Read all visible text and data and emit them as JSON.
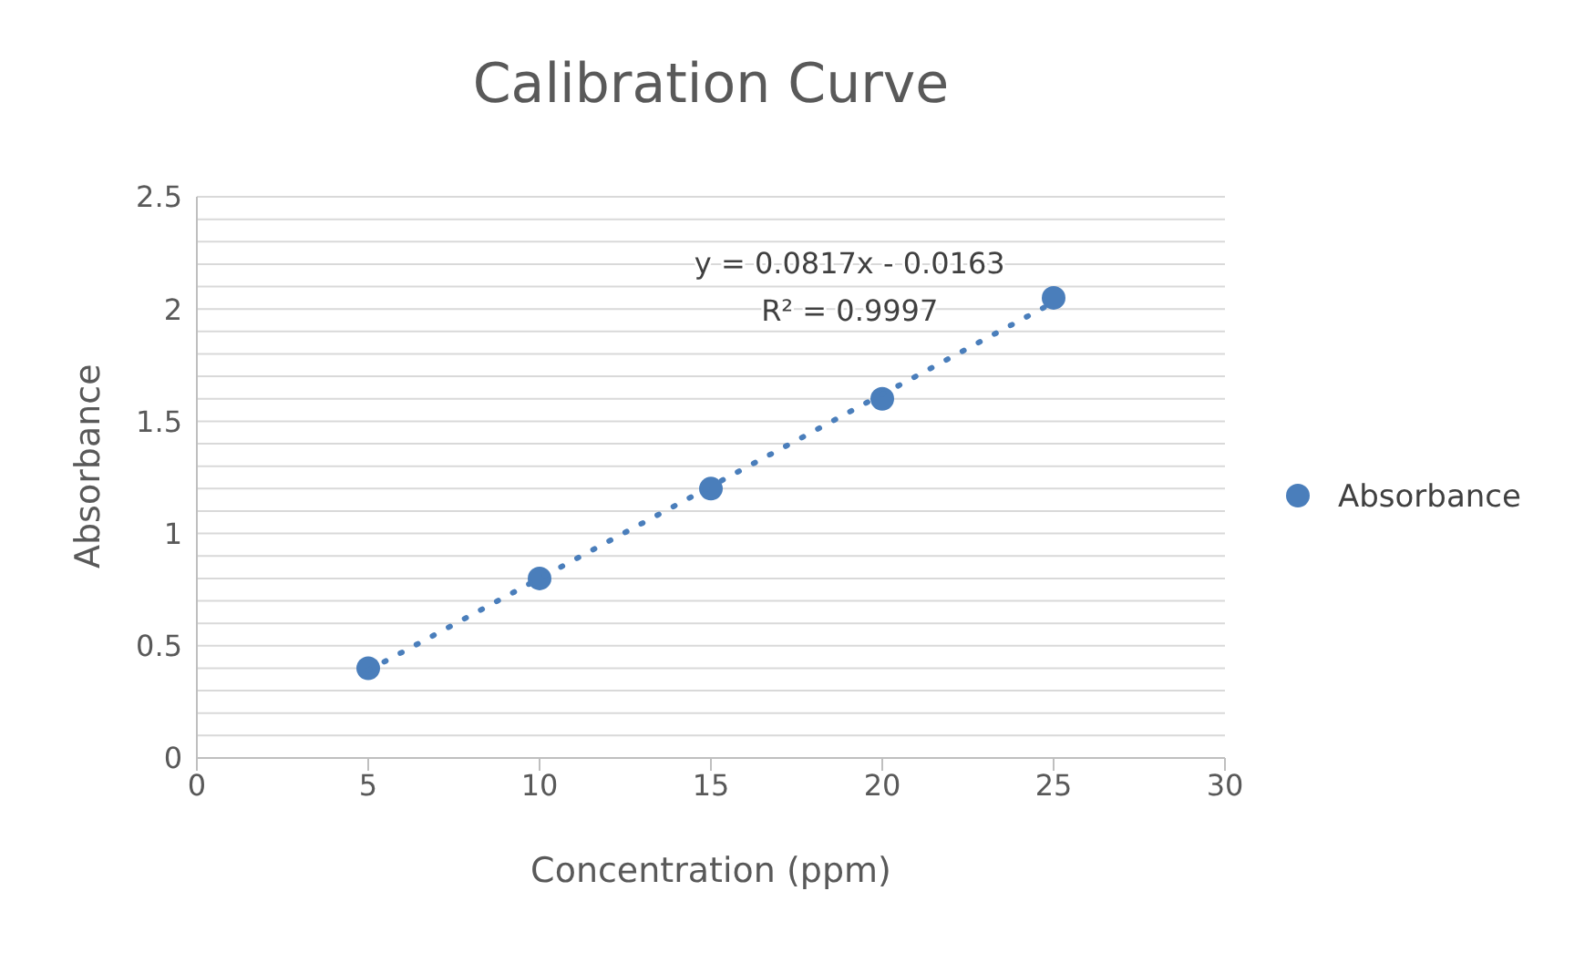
{
  "chart_data": {
    "type": "scatter",
    "title": "Calibration Curve",
    "xlabel": "Concentration (ppm)",
    "ylabel": "Absorbance",
    "annotations": [
      "y = 0.0817x - 0.0163",
      "R² = 0.9997"
    ],
    "x": [
      5,
      10,
      15,
      20,
      25
    ],
    "series": [
      {
        "name": "Absorbance",
        "color": "#4a7ebb",
        "values": [
          0.4,
          0.8,
          1.2,
          1.6,
          2.05
        ],
        "marker": "circle"
      },
      {
        "type": "line",
        "color": "#4a7ebb",
        "x": [
          5,
          25
        ],
        "values": [
          0.39,
          2.03
        ],
        "line_style": "dotted",
        "marker": "none"
      }
    ],
    "xlim": [
      0,
      30
    ],
    "xticks": [
      0,
      5,
      10,
      15,
      20,
      25,
      30
    ],
    "ylim": [
      0,
      2.5
    ],
    "yticks": [
      0,
      {
        "value": 0.1,
        "label": null
      },
      {
        "value": 0.2,
        "label": null
      },
      {
        "value": 0.3,
        "label": null
      },
      {
        "value": 0.4,
        "label": null
      },
      0.5,
      {
        "value": 0.6,
        "label": null
      },
      {
        "value": 0.7,
        "label": null
      },
      {
        "value": 0.8,
        "label": null
      },
      {
        "value": 0.9,
        "label": null
      },
      1,
      {
        "value": 1.1,
        "label": null
      },
      {
        "value": 1.2,
        "label": null
      },
      {
        "value": 1.3,
        "label": null
      },
      {
        "value": 1.4,
        "label": null
      },
      1.5,
      {
        "value": 1.6,
        "label": null
      },
      {
        "value": 1.7,
        "label": null
      },
      {
        "value": 1.8,
        "label": null
      },
      {
        "value": 1.9,
        "label": null
      },
      2,
      {
        "value": 2.1,
        "label": null
      },
      {
        "value": 2.2,
        "label": null
      },
      {
        "value": 2.3,
        "label": null
      },
      {
        "value": 2.4,
        "label": null
      },
      2.5
    ],
    "grid": "y",
    "legend": "right"
  }
}
